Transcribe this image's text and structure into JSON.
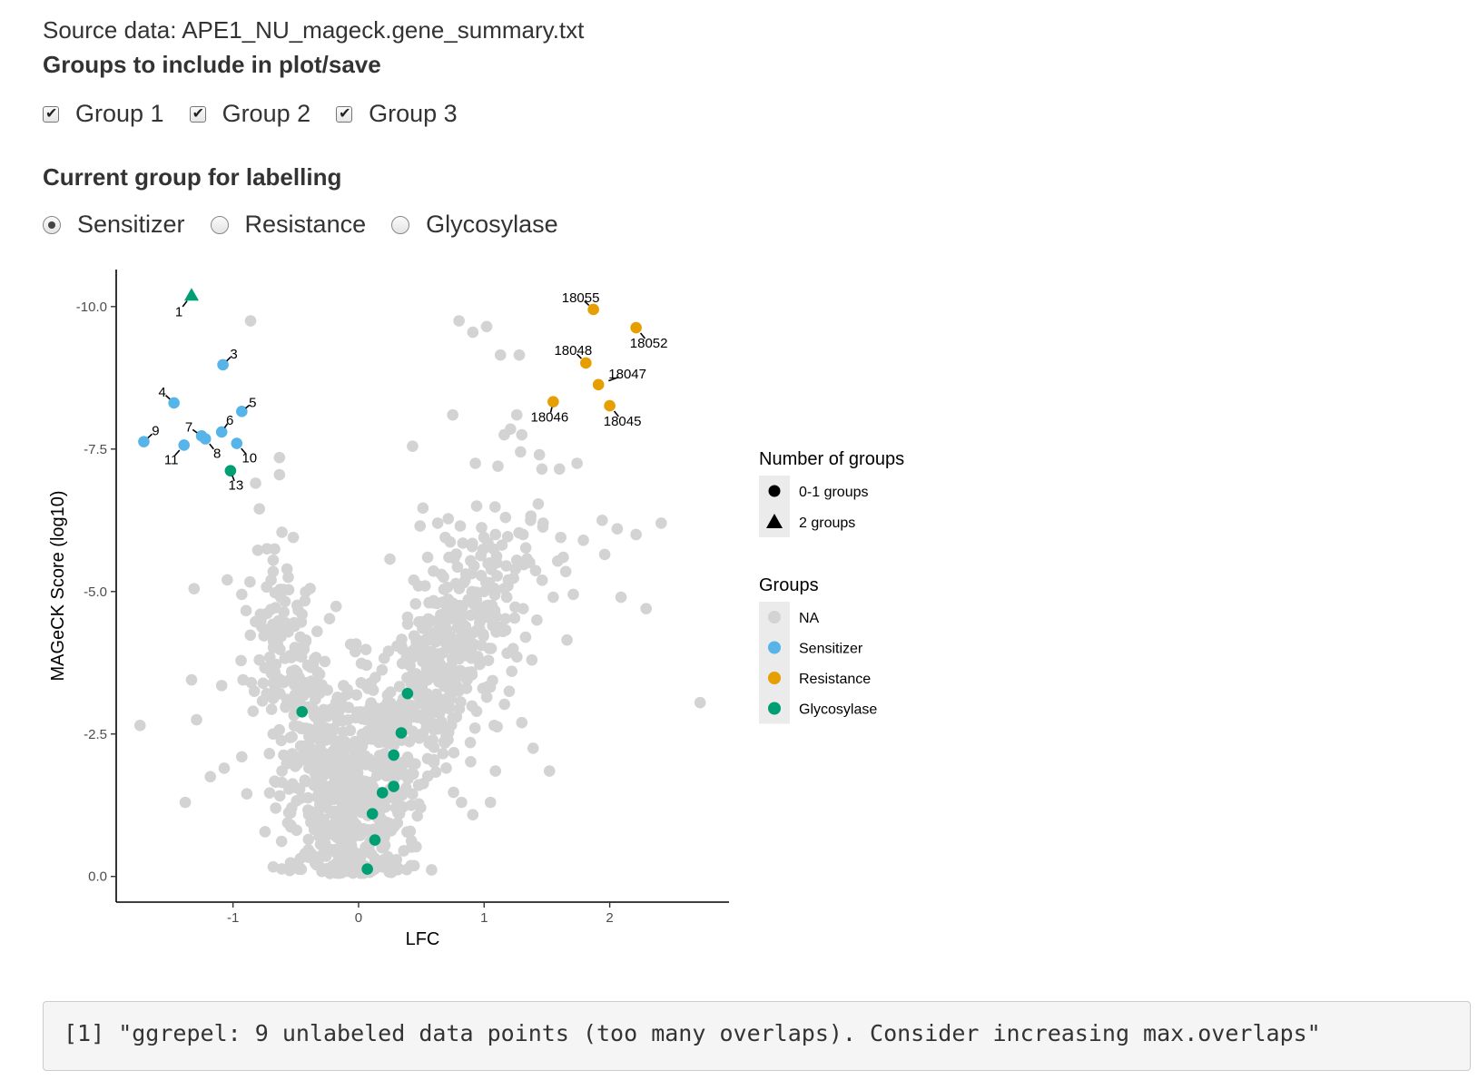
{
  "header": {
    "source_text": "Source data: APE1_NU_mageck.gene_summary.txt",
    "groups_heading": "Groups to include in plot/save",
    "labelling_heading": "Current group for labelling"
  },
  "group_checkboxes": [
    {
      "label": "Group 1",
      "checked": true
    },
    {
      "label": "Group 2",
      "checked": true
    },
    {
      "label": "Group 3",
      "checked": true
    }
  ],
  "label_radios": [
    {
      "label": "Sensitizer",
      "selected": true
    },
    {
      "label": "Resistance",
      "selected": false
    },
    {
      "label": "Glycosylase",
      "selected": false
    }
  ],
  "colors": {
    "na": "#d3d3d3",
    "sensitizer": "#56b4e9",
    "resistance": "#e69f00",
    "glycosylase": "#009e73",
    "axis": "#000000"
  },
  "chart_data": {
    "type": "scatter",
    "xlabel": "LFC",
    "ylabel": "MAGeCK Score (log10)",
    "x_ticks": [
      "-1",
      "0",
      "1",
      "2"
    ],
    "x_tick_values": [
      -1,
      0,
      1,
      2
    ],
    "y_ticks": [
      "-10.0",
      "-7.5",
      "-5.0",
      "-2.5",
      "0.0"
    ],
    "y_tick_values": [
      10,
      7.5,
      5,
      2.5,
      0
    ],
    "xlim": [
      -1.93,
      2.95
    ],
    "ylim": [
      -0.45,
      10.65
    ],
    "grid": false,
    "legend_shape": {
      "title": "Number of groups",
      "entries": [
        {
          "label": "0-1 groups",
          "shape": "circle"
        },
        {
          "label": "2 groups",
          "shape": "triangle"
        }
      ]
    },
    "legend_color": {
      "title": "Groups",
      "entries": [
        "NA",
        "Sensitizer",
        "Resistance",
        "Glycosylase"
      ]
    },
    "labeled_points": [
      {
        "label": "1",
        "x": -1.33,
        "y": 10.2,
        "group": "Glycosylase",
        "shape": "triangle"
      },
      {
        "label": "3",
        "x": -1.08,
        "y": 8.98,
        "group": "Sensitizer"
      },
      {
        "label": "4",
        "x": -1.47,
        "y": 8.31,
        "group": "Sensitizer"
      },
      {
        "label": "5",
        "x": -0.93,
        "y": 8.16,
        "group": "Sensitizer"
      },
      {
        "label": "6",
        "x": -1.09,
        "y": 7.8,
        "group": "Sensitizer"
      },
      {
        "label": "7",
        "x": -1.25,
        "y": 7.73,
        "group": "Sensitizer"
      },
      {
        "label": "8",
        "x": -1.22,
        "y": 7.68,
        "group": "Sensitizer"
      },
      {
        "label": "9",
        "x": -1.71,
        "y": 7.63,
        "group": "Sensitizer"
      },
      {
        "label": "10",
        "x": -0.97,
        "y": 7.6,
        "group": "Sensitizer"
      },
      {
        "label": "11",
        "x": -1.39,
        "y": 7.57,
        "group": "Sensitizer"
      },
      {
        "label": "13",
        "x": -1.02,
        "y": 7.12,
        "group": "Glycosylase"
      },
      {
        "label": "18055",
        "x": 1.87,
        "y": 9.95,
        "group": "Resistance"
      },
      {
        "label": "18052",
        "x": 2.21,
        "y": 9.63,
        "group": "Resistance"
      },
      {
        "label": "18048",
        "x": 1.81,
        "y": 9.01,
        "group": "Resistance"
      },
      {
        "label": "18047",
        "x": 1.91,
        "y": 8.63,
        "group": "Resistance"
      },
      {
        "label": "18046",
        "x": 1.55,
        "y": 8.33,
        "group": "Resistance"
      },
      {
        "label": "18045",
        "x": 2.0,
        "y": 8.26,
        "group": "Resistance"
      }
    ],
    "glycosylase_points": [
      {
        "x": -0.45,
        "y": 2.89
      },
      {
        "x": 0.39,
        "y": 3.21
      },
      {
        "x": 0.34,
        "y": 2.52
      },
      {
        "x": 0.28,
        "y": 2.13
      },
      {
        "x": 0.28,
        "y": 1.58
      },
      {
        "x": 0.19,
        "y": 1.47
      },
      {
        "x": 0.11,
        "y": 1.1
      },
      {
        "x": 0.13,
        "y": 0.64
      },
      {
        "x": 0.07,
        "y": 0.13
      }
    ],
    "na_points": [
      [
        -0.86,
        9.75
      ],
      [
        0.8,
        9.75
      ],
      [
        0.91,
        9.55
      ],
      [
        1.02,
        9.65
      ],
      [
        1.13,
        9.15
      ],
      [
        1.28,
        9.15
      ],
      [
        0.75,
        8.1
      ],
      [
        1.26,
        8.1
      ],
      [
        1.21,
        7.85
      ],
      [
        1.3,
        7.75
      ],
      [
        1.16,
        7.75
      ],
      [
        1.29,
        7.45
      ],
      [
        1.44,
        7.4
      ],
      [
        0.43,
        7.55
      ],
      [
        -0.63,
        7.35
      ],
      [
        -0.63,
        7.05
      ],
      [
        -0.82,
        6.9
      ],
      [
        0.93,
        7.25
      ],
      [
        1.11,
        7.2
      ],
      [
        1.46,
        7.15
      ],
      [
        1.6,
        7.15
      ],
      [
        1.74,
        7.25
      ],
      [
        -0.79,
        6.45
      ],
      [
        0.94,
        6.5
      ],
      [
        1.47,
        6.2
      ],
      [
        1.17,
        6.3
      ],
      [
        1.09,
        6.0
      ],
      [
        1.31,
        6.0
      ],
      [
        1.61,
        5.95
      ],
      [
        -0.73,
        5.75
      ],
      [
        -0.52,
        5.95
      ],
      [
        -0.68,
        5.55
      ],
      [
        -0.68,
        5.35
      ],
      [
        -0.56,
        5.25
      ],
      [
        -1.31,
        5.05
      ],
      [
        -0.93,
        4.95
      ],
      [
        1.71,
        4.95
      ],
      [
        1.94,
        6.25
      ],
      [
        2.06,
        6.1
      ],
      [
        1.79,
        5.9
      ],
      [
        1.96,
        5.65
      ],
      [
        1.63,
        5.6
      ],
      [
        2.21,
        6.0
      ],
      [
        2.41,
        6.2
      ],
      [
        2.09,
        4.9
      ],
      [
        2.29,
        4.7
      ],
      [
        2.72,
        3.05
      ],
      [
        1.66,
        4.15
      ],
      [
        -1.74,
        2.65
      ],
      [
        -1.29,
        2.75
      ],
      [
        -1.18,
        1.75
      ],
      [
        -1.38,
        1.3
      ],
      [
        -0.89,
        1.45
      ],
      [
        -1.07,
        1.9
      ],
      [
        -0.93,
        2.1
      ],
      [
        1.39,
        2.25
      ],
      [
        1.52,
        1.85
      ],
      [
        1.09,
        1.85
      ],
      [
        1.05,
        1.3
      ],
      [
        0.82,
        1.3
      ],
      [
        -0.92,
        3.45
      ],
      [
        -1.09,
        3.35
      ],
      [
        -1.33,
        3.45
      ],
      [
        -0.83,
        3.25
      ],
      [
        -0.84,
        2.9
      ],
      [
        -0.73,
        3.2
      ],
      [
        -0.68,
        2.5
      ],
      [
        -0.53,
        2.45
      ],
      [
        0.02,
        3.4
      ],
      [
        0.1,
        3.4
      ],
      [
        0.23,
        3.05
      ],
      [
        -0.12,
        3.35
      ],
      [
        -0.18,
        3.05
      ],
      [
        -0.31,
        3.55
      ],
      [
        0.45,
        4.0
      ],
      [
        0.52,
        4.45
      ],
      [
        0.6,
        4.8
      ],
      [
        0.66,
        5.3
      ],
      [
        0.72,
        5.6
      ],
      [
        0.83,
        5.85
      ],
      [
        1.0,
        5.0
      ],
      [
        1.19,
        5.1
      ],
      [
        1.31,
        4.7
      ],
      [
        1.42,
        4.5
      ],
      [
        1.15,
        4.3
      ],
      [
        1.33,
        4.2
      ],
      [
        1.22,
        3.6
      ],
      [
        0.97,
        3.75
      ],
      [
        0.86,
        3.3
      ],
      [
        0.94,
        2.9
      ],
      [
        1.08,
        2.65
      ],
      [
        1.2,
        3.25
      ],
      [
        1.3,
        2.7
      ],
      [
        -0.33,
        4.3
      ],
      [
        -0.45,
        4.6
      ],
      [
        -0.62,
        4.9
      ],
      [
        -0.72,
        4.3
      ],
      [
        -0.79,
        3.8
      ],
      [
        0.42,
        1.25
      ],
      [
        0.48,
        1.6
      ],
      [
        0.6,
        2.0
      ],
      [
        0.71,
        2.4
      ],
      [
        0.66,
        3.0
      ],
      [
        -0.21,
        1.6
      ],
      [
        -0.05,
        0.2
      ],
      [
        -0.66,
        1.2
      ],
      [
        -0.54,
        0.9
      ],
      [
        -0.12,
        0.5
      ],
      [
        0.21,
        0.55
      ],
      [
        0.29,
        0.9
      ],
      [
        0.36,
        0.45
      ],
      [
        -0.38,
        0.95
      ],
      [
        -0.27,
        2.0
      ],
      [
        -0.49,
        1.55
      ],
      [
        -0.61,
        1.85
      ],
      [
        0.52,
        2.75
      ],
      [
        0.55,
        3.45
      ],
      [
        0.74,
        3.7
      ],
      [
        0.82,
        4.1
      ],
      [
        0.62,
        4.25
      ],
      [
        0.48,
        3.9
      ],
      [
        0.39,
        4.55
      ],
      [
        0.53,
        5.1
      ],
      [
        0.69,
        5.95
      ],
      [
        0.95,
        4.6
      ],
      [
        1.18,
        4.9
      ],
      [
        1.55,
        4.9
      ],
      [
        1.65,
        5.35
      ],
      [
        1.37,
        6.25
      ],
      [
        1.26,
        5.55
      ],
      [
        0.92,
        5.45
      ],
      [
        0.81,
        6.15
      ],
      [
        0.63,
        6.2
      ],
      [
        0.49,
        6.15
      ],
      [
        0.55,
        5.6
      ],
      [
        0.44,
        5.2
      ],
      [
        1.38,
        3.8
      ],
      [
        0.99,
        3.3
      ],
      [
        0.78,
        2.8
      ],
      [
        0.89,
        2.35
      ]
    ],
    "na_cloud": [
      {
        "cx": -0.08,
        "cy": 1.3,
        "sx": 0.26,
        "sy": 1.05,
        "tilt": 0,
        "n": 420
      },
      {
        "cx": 0.45,
        "cy": 2.7,
        "sx": 0.24,
        "sy": 1.1,
        "tilt": 0.65,
        "n": 260
      },
      {
        "cx": 0.75,
        "cy": 4.3,
        "sx": 0.26,
        "sy": 0.95,
        "tilt": 0.5,
        "n": 200
      },
      {
        "cx": -0.4,
        "cy": 2.7,
        "sx": 0.16,
        "sy": 0.95,
        "tilt": -0.35,
        "n": 150
      },
      {
        "cx": -0.52,
        "cy": 4.0,
        "sx": 0.12,
        "sy": 0.7,
        "tilt": -0.3,
        "n": 70
      }
    ]
  },
  "console": {
    "output": "[1] \"ggrepel: 9 unlabeled data points (too many overlaps). Consider increasing max.overlaps\""
  }
}
